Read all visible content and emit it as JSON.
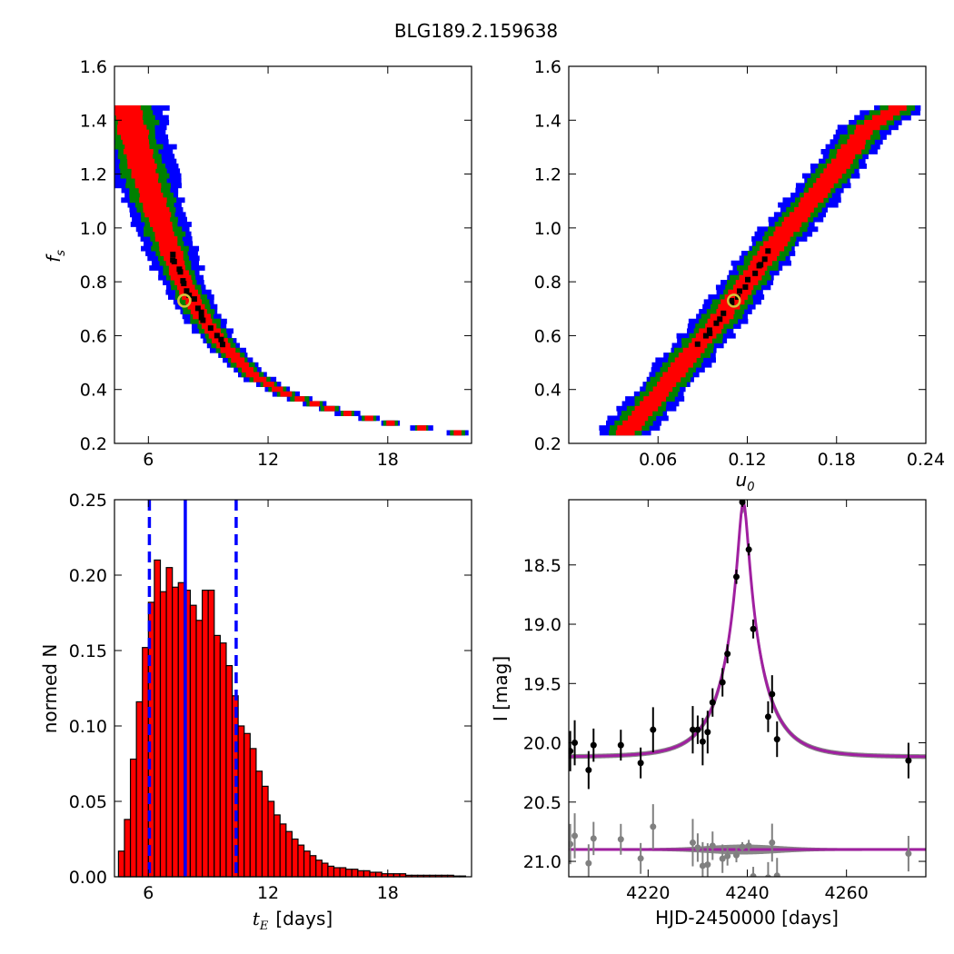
{
  "figure": {
    "title": "BLG189.2.159638"
  },
  "chart_data": [
    {
      "id": "fs_vs_tE",
      "type": "heatmap",
      "title": "",
      "xlabel": "",
      "ylabel": "f",
      "ylabel_sub": "s",
      "xlim": [
        4.3,
        22.2
      ],
      "ylim": [
        0.2,
        1.6
      ],
      "xticks": [
        "6",
        "12",
        "18"
      ],
      "xtick_values": [
        6,
        12,
        18
      ],
      "yticks": [
        "0.2",
        "0.4",
        "0.6",
        "0.8",
        "1.0",
        "1.2",
        "1.4",
        "1.6"
      ],
      "ytick_values": [
        0.2,
        0.4,
        0.6,
        0.8,
        1.0,
        1.2,
        1.4,
        1.6
      ],
      "contour_colors": {
        "outer": "#0000ff",
        "middle": "#008000",
        "inner": "#ff0000",
        "best": "#000000"
      },
      "ridge": {
        "tE": [
          4.9,
          5.8,
          6.7,
          7.6,
          8.6,
          9.8,
          11.3,
          13.0,
          15.5,
          18.5,
          21.5
        ],
        "fs": [
          1.45,
          1.2,
          1.0,
          0.82,
          0.68,
          0.56,
          0.45,
          0.38,
          0.32,
          0.27,
          0.24
        ]
      },
      "best_fit": {
        "tE": 7.8,
        "fs": 0.73
      }
    },
    {
      "id": "fs_vs_u0",
      "type": "heatmap",
      "title": "",
      "xlabel": "u",
      "xlabel_sub": "0",
      "ylabel": "",
      "xlim": [
        0.0,
        0.24
      ],
      "ylim": [
        0.2,
        1.6
      ],
      "xticks": [
        "0.06",
        "0.12",
        "0.18",
        "0.24"
      ],
      "xtick_values": [
        0.06,
        0.12,
        0.18,
        0.24
      ],
      "yticks": [
        "0.2",
        "0.4",
        "0.6",
        "0.8",
        "1.0",
        "1.2",
        "1.4",
        "1.6"
      ],
      "ytick_values": [
        0.2,
        0.4,
        0.6,
        0.8,
        1.0,
        1.2,
        1.4,
        1.6
      ],
      "contour_colors": {
        "outer": "#0000ff",
        "middle": "#008000",
        "inner": "#ff0000",
        "best": "#000000"
      },
      "ridge": {
        "u0": [
          0.038,
          0.06,
          0.08,
          0.1,
          0.12,
          0.14,
          0.16,
          0.18,
          0.2,
          0.222
        ],
        "fs": [
          0.24,
          0.38,
          0.52,
          0.65,
          0.8,
          0.95,
          1.08,
          1.22,
          1.37,
          1.45
        ]
      },
      "best_fit": {
        "u0": 0.111,
        "fs": 0.73
      }
    },
    {
      "id": "tE_histogram",
      "type": "bar",
      "title": "",
      "xlabel": "t",
      "xlabel_sub": "E",
      "xlabel_unit": "[days]",
      "ylabel": "normed N",
      "xlim": [
        4.3,
        22.2
      ],
      "ylim": [
        0.0,
        0.25
      ],
      "xticks": [
        "6",
        "12",
        "18"
      ],
      "xtick_values": [
        6,
        12,
        18
      ],
      "yticks": [
        "0.00",
        "0.05",
        "0.10",
        "0.15",
        "0.20",
        "0.25"
      ],
      "ytick_values": [
        0.0,
        0.05,
        0.1,
        0.15,
        0.2,
        0.25
      ],
      "bin_start": 4.5,
      "bin_width": 0.3,
      "values": [
        0.017,
        0.038,
        0.078,
        0.116,
        0.152,
        0.182,
        0.21,
        0.189,
        0.205,
        0.192,
        0.195,
        0.19,
        0.18,
        0.17,
        0.19,
        0.19,
        0.16,
        0.155,
        0.14,
        0.12,
        0.1,
        0.095,
        0.085,
        0.07,
        0.06,
        0.05,
        0.041,
        0.035,
        0.03,
        0.025,
        0.021,
        0.017,
        0.014,
        0.011,
        0.009,
        0.007,
        0.006,
        0.006,
        0.005,
        0.005,
        0.004,
        0.004,
        0.003,
        0.003,
        0.002,
        0.002,
        0.002,
        0.002,
        0.001,
        0.001,
        0.001,
        0.001,
        0.001,
        0.001,
        0.001,
        0.001,
        0.0005,
        0.0005
      ],
      "bar_color": "#ff0000",
      "median": 7.85,
      "bounds": [
        6.05,
        10.4
      ],
      "line_color": "#0000ff"
    },
    {
      "id": "lightcurve",
      "type": "scatter",
      "title": "",
      "xlabel": "HJD-2450000 [days]",
      "ylabel": "I [mag]",
      "xlim": [
        4204,
        4276
      ],
      "ylim": [
        21.13,
        17.95
      ],
      "y_inverted": true,
      "xticks": [
        "4220",
        "4240",
        "4260"
      ],
      "xtick_values": [
        4220,
        4240,
        4260
      ],
      "yticks": [
        "18.5",
        "19.0",
        "19.5",
        "20.0",
        "20.5",
        "21.0"
      ],
      "ytick_values": [
        18.5,
        19.0,
        19.5,
        20.0,
        20.5,
        21.0
      ],
      "model": {
        "baseline": 20.12,
        "peak_time": 4239.2,
        "peak_mag": 17.97,
        "color": "#a020a0"
      },
      "residual_offset": 20.9,
      "data_color": "#000000",
      "residual_color": "#808080",
      "points": [
        {
          "t": 4204.3,
          "mag": 20.07,
          "err": 0.17
        },
        {
          "t": 4205.2,
          "mag": 20.0,
          "err": 0.19
        },
        {
          "t": 4208.0,
          "mag": 20.23,
          "err": 0.16
        },
        {
          "t": 4209.0,
          "mag": 20.02,
          "err": 0.14
        },
        {
          "t": 4214.5,
          "mag": 20.02,
          "err": 0.13
        },
        {
          "t": 4218.5,
          "mag": 20.17,
          "err": 0.13
        },
        {
          "t": 4221.0,
          "mag": 19.89,
          "err": 0.19
        },
        {
          "t": 4229.0,
          "mag": 19.89,
          "err": 0.2
        },
        {
          "t": 4230.0,
          "mag": 19.89,
          "err": 0.12
        },
        {
          "t": 4231.0,
          "mag": 19.99,
          "err": 0.2
        },
        {
          "t": 4232.0,
          "mag": 19.91,
          "err": 0.18
        },
        {
          "t": 4233.0,
          "mag": 19.66,
          "err": 0.12
        },
        {
          "t": 4235.0,
          "mag": 19.49,
          "err": 0.12
        },
        {
          "t": 4236.0,
          "mag": 19.25,
          "err": 0.08
        },
        {
          "t": 4237.8,
          "mag": 18.6,
          "err": 0.06
        },
        {
          "t": 4239.0,
          "mag": 17.97,
          "err": 0.04
        },
        {
          "t": 4240.3,
          "mag": 18.37,
          "err": 0.05
        },
        {
          "t": 4241.2,
          "mag": 19.04,
          "err": 0.08
        },
        {
          "t": 4244.2,
          "mag": 19.78,
          "err": 0.13
        },
        {
          "t": 4245.0,
          "mag": 19.59,
          "err": 0.16
        },
        {
          "t": 4246.0,
          "mag": 19.97,
          "err": 0.15
        },
        {
          "t": 4272.5,
          "mag": 20.15,
          "err": 0.15
        }
      ]
    }
  ]
}
